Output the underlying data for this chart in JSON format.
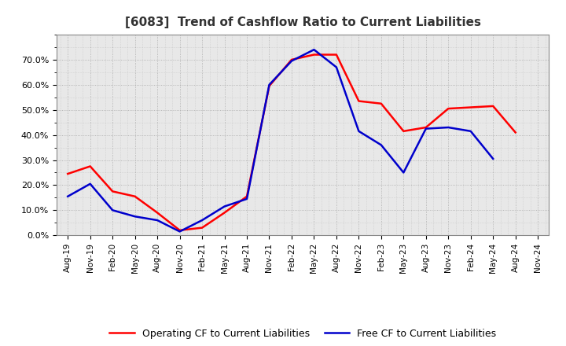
{
  "title": "[6083]  Trend of Cashflow Ratio to Current Liabilities",
  "title_fontsize": 11,
  "background_color": "#ffffff",
  "plot_background_color": "#e8e8e8",
  "grid_color": "#999999",
  "ylim": [
    0.0,
    0.8
  ],
  "yticks": [
    0.0,
    0.1,
    0.2,
    0.3,
    0.4,
    0.5,
    0.6,
    0.7
  ],
  "operating_cf_color": "#ff0000",
  "free_cf_color": "#0000cc",
  "legend_operating": "Operating CF to Current Liabilities",
  "legend_free": "Free CF to Current Liabilities",
  "x_labels": [
    "Aug-19",
    "Nov-19",
    "Feb-20",
    "May-20",
    "Aug-20",
    "Nov-20",
    "Feb-21",
    "May-21",
    "Aug-21",
    "Nov-21",
    "Feb-22",
    "May-22",
    "Aug-22",
    "Nov-22",
    "Feb-23",
    "May-23",
    "Aug-23",
    "Nov-23",
    "Feb-24",
    "May-24",
    "Aug-24",
    "Nov-24"
  ],
  "operating_cf": [
    0.245,
    0.275,
    0.175,
    0.155,
    0.09,
    0.02,
    0.03,
    0.09,
    0.155,
    0.595,
    0.7,
    0.72,
    0.72,
    0.535,
    0.525,
    0.415,
    0.43,
    0.505,
    0.51,
    0.515,
    0.41,
    null
  ],
  "free_cf": [
    0.155,
    0.205,
    0.1,
    0.075,
    0.06,
    0.015,
    0.06,
    0.115,
    0.145,
    0.6,
    0.695,
    0.74,
    0.67,
    0.415,
    0.36,
    0.25,
    0.425,
    0.43,
    0.415,
    0.305,
    null,
    null
  ]
}
